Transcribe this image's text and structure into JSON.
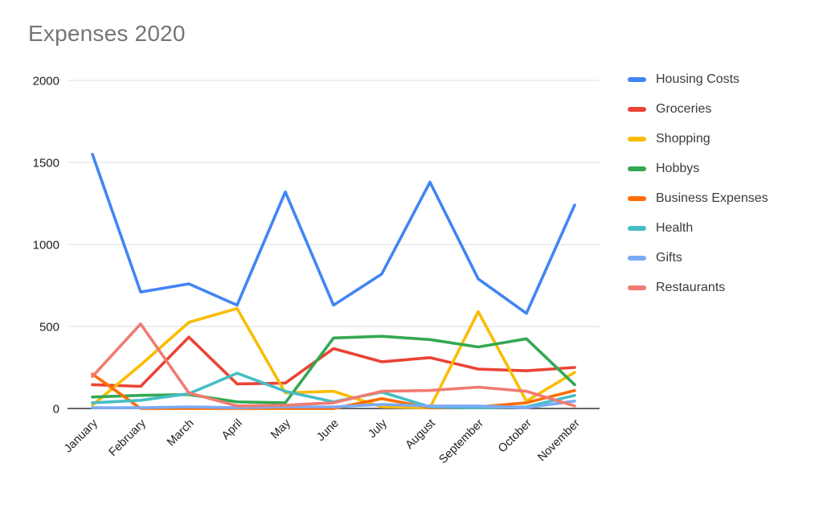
{
  "title": "Expenses 2020",
  "chart_data": {
    "type": "line",
    "title": "Expenses 2020",
    "categories": [
      "January",
      "February",
      "March",
      "April",
      "May",
      "June",
      "July",
      "August",
      "September",
      "October",
      "November"
    ],
    "series": [
      {
        "name": "Housing Costs",
        "color": "#4285F4",
        "values": [
          1550,
          710,
          760,
          630,
          1320,
          630,
          820,
          1380,
          790,
          580,
          1240
        ]
      },
      {
        "name": "Groceries",
        "color": "#EA4335",
        "values": [
          145,
          135,
          435,
          150,
          155,
          365,
          285,
          310,
          240,
          230,
          250
        ]
      },
      {
        "name": "Shopping",
        "color": "#FBBC04",
        "values": [
          20,
          265,
          525,
          610,
          95,
          105,
          10,
          5,
          590,
          45,
          220
        ]
      },
      {
        "name": "Hobbys",
        "color": "#34A853",
        "values": [
          70,
          80,
          85,
          40,
          35,
          430,
          440,
          420,
          375,
          425,
          145
        ]
      },
      {
        "name": "Business Expenses",
        "color": "#FF6D01",
        "values": [
          210,
          0,
          0,
          0,
          0,
          0,
          60,
          5,
          10,
          35,
          110
        ]
      },
      {
        "name": "Health",
        "color": "#46BDC6",
        "values": [
          35,
          50,
          90,
          215,
          105,
          40,
          100,
          10,
          5,
          10,
          80
        ]
      },
      {
        "name": "Gifts",
        "color": "#7BAAF7",
        "values": [
          5,
          5,
          10,
          5,
          10,
          10,
          25,
          15,
          15,
          5,
          45
        ]
      },
      {
        "name": "Restaurants",
        "color": "#F07B72",
        "values": [
          195,
          515,
          95,
          15,
          20,
          35,
          105,
          110,
          130,
          105,
          15
        ]
      }
    ],
    "xlabel": "",
    "ylabel": "",
    "ylim": [
      0,
      2000
    ],
    "yticks": [
      0,
      500,
      1000,
      1500,
      2000
    ],
    "grid": true,
    "legend_position": "right",
    "gridline_color": "#dadce0",
    "baseline_color": "#333333",
    "title_color": "#757575"
  }
}
